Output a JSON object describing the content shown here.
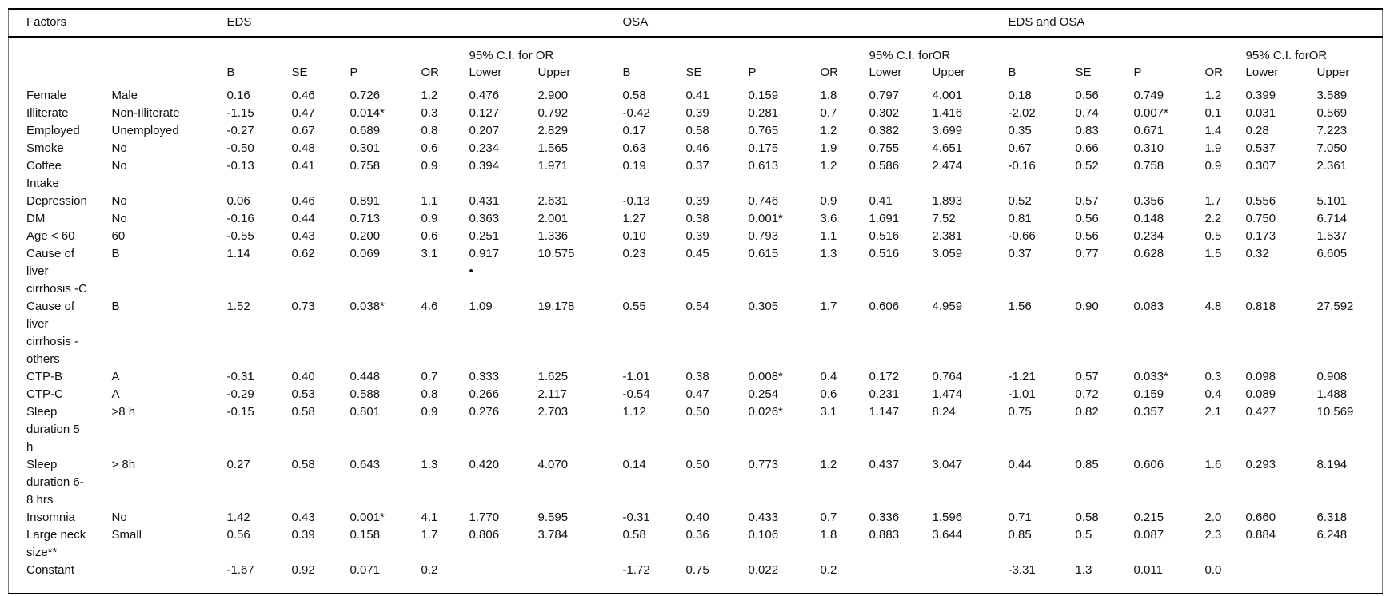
{
  "table": {
    "factors_header": "Factors",
    "groups": [
      "EDS",
      "OSA",
      "EDS and OSA"
    ],
    "ci_labels": [
      "95% C.I. for OR",
      "95% C.I. forOR",
      "95% C.I. forOR"
    ],
    "sub_headers": [
      "B",
      "SE",
      "P",
      "OR",
      "Lower",
      "Upper"
    ],
    "rows": [
      {
        "factor": "Female",
        "reference": "Male",
        "eds": [
          "0.16",
          "0.46",
          "0.726",
          "1.2",
          "0.476",
          "2.900"
        ],
        "osa": [
          "0.58",
          "0.41",
          "0.159",
          "1.8",
          "0.797",
          "4.001"
        ],
        "eds_and_osa": [
          "0.18",
          "0.56",
          "0.749",
          "1.2",
          "0.399",
          "3.589"
        ]
      },
      {
        "factor": "Illiterate",
        "reference": "Non-Illiterate",
        "eds": [
          "-1.15",
          "0.47",
          "0.014*",
          "0.3",
          "0.127",
          "0.792"
        ],
        "osa": [
          "-0.42",
          "0.39",
          "0.281",
          "0.7",
          "0.302",
          "1.416"
        ],
        "eds_and_osa": [
          "-2.02",
          "0.74",
          "0.007*",
          "0.1",
          "0.031",
          "0.569"
        ]
      },
      {
        "factor": "Employed",
        "reference": "Unemployed",
        "eds": [
          "-0.27",
          "0.67",
          "0.689",
          "0.8",
          "0.207",
          "2.829"
        ],
        "osa": [
          "0.17",
          "0.58",
          "0.765",
          "1.2",
          "0.382",
          "3.699"
        ],
        "eds_and_osa": [
          "0.35",
          "0.83",
          "0.671",
          "1.4",
          "0.28",
          "7.223"
        ]
      },
      {
        "factor": "Smoke",
        "reference": "No",
        "eds": [
          "-0.50",
          "0.48",
          "0.301",
          "0.6",
          "0.234",
          "1.565"
        ],
        "osa": [
          "0.63",
          "0.46",
          "0.175",
          "1.9",
          "0.755",
          "4.651"
        ],
        "eds_and_osa": [
          "0.67",
          "0.66",
          "0.310",
          "1.9",
          "0.537",
          "7.050"
        ]
      },
      {
        "factor": "Coffee Intake",
        "reference": "No",
        "eds": [
          "-0.13",
          "0.41",
          "0.758",
          "0.9",
          "0.394",
          "1.971"
        ],
        "osa": [
          "0.19",
          "0.37",
          "0.613",
          "1.2",
          "0.586",
          "2.474"
        ],
        "eds_and_osa": [
          "-0.16",
          "0.52",
          "0.758",
          "0.9",
          "0.307",
          "2.361"
        ]
      },
      {
        "factor": "Depression",
        "reference": "No",
        "eds": [
          "0.06",
          "0.46",
          "0.891",
          "1.1",
          "0.431",
          "2.631"
        ],
        "osa": [
          "-0.13",
          "0.39",
          "0.746",
          "0.9",
          "0.41",
          "1.893"
        ],
        "eds_and_osa": [
          "0.52",
          "0.57",
          "0.356",
          "1.7",
          "0.556",
          "5.101"
        ]
      },
      {
        "factor": "DM",
        "reference": "No",
        "eds": [
          "-0.16",
          "0.44",
          "0.713",
          "0.9",
          "0.363",
          "2.001"
        ],
        "osa": [
          "1.27",
          "0.38",
          "0.001*",
          "3.6",
          "1.691",
          "7.52"
        ],
        "eds_and_osa": [
          "0.81",
          "0.56",
          "0.148",
          "2.2",
          "0.750",
          "6.714"
        ]
      },
      {
        "factor": "Age < 60",
        "reference": "60",
        "eds": [
          "-0.55",
          "0.43",
          "0.200",
          "0.6",
          "0.251",
          "1.336"
        ],
        "osa": [
          "0.10",
          "0.39",
          "0.793",
          "1.1",
          "0.516",
          "2.381"
        ],
        "eds_and_osa": [
          "-0.66",
          "0.56",
          "0.234",
          "0.5",
          "0.173",
          "1.537"
        ]
      },
      {
        "factor": "Cause of liver cirrhosis -C",
        "reference": "B",
        "eds": [
          "1.14",
          "0.62",
          "0.069",
          "3.1",
          "0.917\n•",
          "10.575"
        ],
        "osa": [
          "0.23",
          "0.45",
          "0.615",
          "1.3",
          "0.516",
          "3.059"
        ],
        "eds_and_osa": [
          "0.37",
          "0.77",
          "0.628",
          "1.5",
          "0.32",
          "6.605"
        ]
      },
      {
        "factor": "Cause of liver cirrhosis - others",
        "reference": "B",
        "eds": [
          "1.52",
          "0.73",
          "0.038*",
          "4.6",
          "1.09",
          "19.178"
        ],
        "osa": [
          "0.55",
          "0.54",
          "0.305",
          "1.7",
          "0.606",
          "4.959"
        ],
        "eds_and_osa": [
          "1.56",
          "0.90",
          "0.083",
          "4.8",
          "0.818",
          "27.592"
        ]
      },
      {
        "factor": "CTP-B",
        "reference": "A",
        "eds": [
          "-0.31",
          "0.40",
          "0.448",
          "0.7",
          "0.333",
          "1.625"
        ],
        "osa": [
          "-1.01",
          "0.38",
          "0.008*",
          "0.4",
          "0.172",
          "0.764"
        ],
        "eds_and_osa": [
          "-1.21",
          "0.57",
          "0.033*",
          "0.3",
          "0.098",
          "0.908"
        ]
      },
      {
        "factor": "CTP-C",
        "reference": "A",
        "eds": [
          "-0.29",
          "0.53",
          "0.588",
          "0.8",
          "0.266",
          "2.117"
        ],
        "osa": [
          "-0.54",
          "0.47",
          "0.254",
          "0.6",
          "0.231",
          "1.474"
        ],
        "eds_and_osa": [
          "-1.01",
          "0.72",
          "0.159",
          "0.4",
          "0.089",
          "1.488"
        ]
      },
      {
        "factor": "Sleep duration 5 h",
        "reference": ">8 h",
        "eds": [
          "-0.15",
          "0.58",
          "0.801",
          "0.9",
          "0.276",
          "2.703"
        ],
        "osa": [
          "1.12",
          "0.50",
          "0.026*",
          "3.1",
          "1.147",
          "8.24"
        ],
        "eds_and_osa": [
          "0.75",
          "0.82",
          "0.357",
          "2.1",
          "0.427",
          "10.569"
        ]
      },
      {
        "factor": "Sleep duration 6-8 hrs",
        "reference": "> 8h",
        "eds": [
          "0.27",
          "0.58",
          "0.643",
          "1.3",
          "0.420",
          "4.070"
        ],
        "osa": [
          "0.14",
          "0.50",
          "0.773",
          "1.2",
          "0.437",
          "3.047"
        ],
        "eds_and_osa": [
          "0.44",
          "0.85",
          "0.606",
          "1.6",
          "0.293",
          "8.194"
        ]
      },
      {
        "factor": "Insomnia",
        "reference": "No",
        "eds": [
          "1.42",
          "0.43",
          "0.001*",
          "4.1",
          "1.770",
          "9.595"
        ],
        "osa": [
          "-0.31",
          "0.40",
          "0.433",
          "0.7",
          "0.336",
          "1.596"
        ],
        "eds_and_osa": [
          "0.71",
          "0.58",
          "0.215",
          "2.0",
          "0.660",
          "6.318"
        ]
      },
      {
        "factor": "Large neck size**",
        "reference": "Small",
        "eds": [
          "0.56",
          "0.39",
          "0.158",
          "1.7",
          "0.806",
          "3.784"
        ],
        "osa": [
          "0.58",
          "0.36",
          "0.106",
          "1.8",
          "0.883",
          "3.644"
        ],
        "eds_and_osa": [
          "0.85",
          "0.5",
          "0.087",
          "2.3",
          "0.884",
          "6.248"
        ]
      },
      {
        "factor": "Constant",
        "reference": "",
        "eds": [
          "-1.67",
          "0.92",
          "0.071",
          "0.2",
          "",
          ""
        ],
        "osa": [
          "-1.72",
          "0.75",
          "0.022",
          "0.2",
          "",
          ""
        ],
        "eds_and_osa": [
          "-3.31",
          "1.3",
          "0.011",
          "0.0",
          "",
          ""
        ]
      }
    ]
  }
}
